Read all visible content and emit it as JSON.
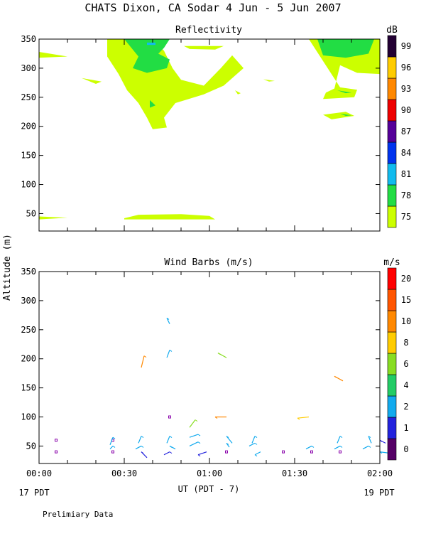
{
  "header": {
    "title": "CHATS Dixon, CA  Sodar   4 Jun -  5 Jun 2007"
  },
  "footer": {
    "note": "Prelimiary Data"
  },
  "shared": {
    "ylabel": "Altitude (m)",
    "xlabel": "UT  (PDT - 7)",
    "x_ticks": [
      "00:00",
      "00:30",
      "01:00",
      "01:30",
      "02:00"
    ],
    "x_sub_left": "17 PDT",
    "x_sub_right": "19 PDT"
  },
  "chart_data": [
    {
      "type": "heatmap",
      "title": "Reflectivity",
      "units": "dB",
      "xlim_minutes": [
        0,
        120
      ],
      "ylim": [
        20,
        350
      ],
      "y_ticks": [
        50,
        100,
        150,
        200,
        250,
        300,
        350
      ],
      "colorbar": {
        "labels": [
          "75",
          "78",
          "81",
          "84",
          "87",
          "90",
          "93",
          "96",
          "99"
        ],
        "colors": [
          "#ccff00",
          "#22dd44",
          "#11bbee",
          "#0033ee",
          "#550099",
          "#ee0000",
          "#ff8800",
          "#ffcc00",
          "#220033"
        ]
      },
      "regions": [
        {
          "level": 75,
          "points": [
            [
              24,
              350
            ],
            [
              40,
              350
            ],
            [
              44,
              330
            ],
            [
              47,
              300
            ],
            [
              50,
              280
            ],
            [
              58,
              270
            ],
            [
              64,
              300
            ],
            [
              68,
              322
            ],
            [
              72,
              300
            ],
            [
              65,
              270
            ],
            [
              58,
              255
            ],
            [
              48,
              240
            ],
            [
              44,
              215
            ],
            [
              45,
              198
            ],
            [
              40,
              195
            ],
            [
              38,
              215
            ],
            [
              35,
              240
            ],
            [
              31,
              262
            ],
            [
              28,
              290
            ],
            [
              24,
              320
            ]
          ]
        },
        {
          "level": 75,
          "points": [
            [
              0,
              328
            ],
            [
              10,
              320
            ],
            [
              0,
              318
            ]
          ]
        },
        {
          "level": 75,
          "points": [
            [
              15,
              283
            ],
            [
              22,
              277
            ],
            [
              20,
              273
            ]
          ]
        },
        {
          "level": 75,
          "points": [
            [
              51,
              338
            ],
            [
              65,
              338
            ],
            [
              62,
              332
            ],
            [
              53,
              333
            ]
          ]
        },
        {
          "level": 75,
          "points": [
            [
              69,
              262
            ],
            [
              71,
              257
            ],
            [
              70,
              255
            ]
          ]
        },
        {
          "level": 75,
          "points": [
            [
              79,
              281
            ],
            [
              83,
              278
            ],
            [
              81,
              277
            ]
          ]
        },
        {
          "level": 75,
          "points": [
            [
              95,
              350
            ],
            [
              120,
              350
            ],
            [
              120,
              290
            ],
            [
              112,
              292
            ],
            [
              106,
              305
            ],
            [
              104,
              265
            ],
            [
              101,
              258
            ],
            [
              100,
              247
            ],
            [
              111,
              250
            ],
            [
              112,
              263
            ],
            [
              106,
              267
            ]
          ]
        },
        {
          "level": 75,
          "points": [
            [
              100,
              220
            ],
            [
              108,
              225
            ],
            [
              111,
              218
            ],
            [
              103,
              212
            ]
          ]
        },
        {
          "level": 75,
          "points": [
            [
              0,
              45
            ],
            [
              10,
              43
            ],
            [
              0,
              40
            ]
          ]
        },
        {
          "level": 75,
          "points": [
            [
              30,
              42
            ],
            [
              35,
              48
            ],
            [
              50,
              49
            ],
            [
              60,
              46
            ],
            [
              62,
              40
            ],
            [
              30,
              40
            ]
          ]
        },
        {
          "level": 78,
          "points": [
            [
              30,
              350
            ],
            [
              46,
              350
            ],
            [
              44,
              335
            ],
            [
              42,
              325
            ],
            [
              46,
              315
            ],
            [
              45,
              300
            ],
            [
              38,
              292
            ],
            [
              33,
              300
            ],
            [
              35,
              320
            ]
          ]
        },
        {
          "level": 78,
          "points": [
            [
              39,
              245
            ],
            [
              41,
              236
            ],
            [
              39,
              232
            ]
          ]
        },
        {
          "level": 78,
          "points": [
            [
              98,
              350
            ],
            [
              118,
              350
            ],
            [
              116,
              325
            ],
            [
              108,
              318
            ],
            [
              100,
              322
            ]
          ]
        },
        {
          "level": 78,
          "points": [
            [
              105,
              262
            ],
            [
              110,
              258
            ],
            [
              108,
              257
            ]
          ]
        },
        {
          "level": 78,
          "points": [
            [
              106,
              222
            ],
            [
              110,
              219
            ],
            [
              108,
              218
            ]
          ]
        },
        {
          "level": 81,
          "points": [
            [
              38,
              344
            ],
            [
              41,
              344
            ],
            [
              41,
              340
            ],
            [
              38,
              340
            ]
          ]
        }
      ]
    },
    {
      "type": "scatter",
      "title": "Wind Barbs (m/s)",
      "units": "m/s",
      "xlim_minutes": [
        0,
        120
      ],
      "ylim": [
        20,
        350
      ],
      "y_ticks": [
        50,
        100,
        150,
        200,
        250,
        300,
        350
      ],
      "colorbar": {
        "labels": [
          "0",
          "1",
          "2",
          "4",
          "6",
          "8",
          "10",
          "15",
          "20"
        ],
        "colors": [
          "#550066",
          "#2222dd",
          "#11aaee",
          "#22cc66",
          "#88dd22",
          "#ffcc00",
          "#ff8800",
          "#ff5500",
          "#ff0000"
        ]
      },
      "calm_points": [
        [
          6,
          60
        ],
        [
          6,
          40
        ],
        [
          26,
          60
        ],
        [
          26,
          40
        ],
        [
          46,
          100
        ],
        [
          66,
          40
        ],
        [
          86,
          40
        ],
        [
          96,
          40
        ],
        [
          106,
          40
        ]
      ],
      "barbs": [
        {
          "t": 45,
          "alt": 270,
          "speed": 2,
          "x2": 46,
          "y2": 260
        },
        {
          "t": 46,
          "alt": 215,
          "speed": 2,
          "x2": 45,
          "y2": 202
        },
        {
          "t": 37,
          "alt": 205,
          "speed": 11,
          "x2": 36,
          "y2": 185
        },
        {
          "t": 63,
          "alt": 210,
          "speed": 6,
          "x2": 66,
          "y2": 202
        },
        {
          "t": 104,
          "alt": 170,
          "speed": 11,
          "x2": 107,
          "y2": 162
        },
        {
          "t": 62,
          "alt": 100,
          "speed": 11,
          "x2": 66,
          "y2": 100
        },
        {
          "t": 91,
          "alt": 98,
          "speed": 8,
          "x2": 95,
          "y2": 100
        },
        {
          "t": 55,
          "alt": 95,
          "speed": 6,
          "x2": 53,
          "y2": 82
        },
        {
          "t": 26,
          "alt": 65,
          "speed": 2,
          "x2": 25,
          "y2": 52
        },
        {
          "t": 36,
          "alt": 67,
          "speed": 2,
          "x2": 35,
          "y2": 55
        },
        {
          "t": 46,
          "alt": 67,
          "speed": 2,
          "x2": 45,
          "y2": 55
        },
        {
          "t": 56,
          "alt": 70,
          "speed": 2,
          "x2": 53,
          "y2": 65
        },
        {
          "t": 66,
          "alt": 67,
          "speed": 2,
          "x2": 68,
          "y2": 55
        },
        {
          "t": 76,
          "alt": 67,
          "speed": 2,
          "x2": 75,
          "y2": 55
        },
        {
          "t": 106,
          "alt": 67,
          "speed": 2,
          "x2": 105,
          "y2": 55
        },
        {
          "t": 116,
          "alt": 67,
          "speed": 2,
          "x2": 117,
          "y2": 55
        },
        {
          "t": 26,
          "alt": 50,
          "speed": 2,
          "x2": 25,
          "y2": 45
        },
        {
          "t": 36,
          "alt": 50,
          "speed": 2,
          "x2": 34,
          "y2": 45
        },
        {
          "t": 46,
          "alt": 50,
          "speed": 2,
          "x2": 48,
          "y2": 45
        },
        {
          "t": 56,
          "alt": 57,
          "speed": 2,
          "x2": 53,
          "y2": 50
        },
        {
          "t": 66,
          "alt": 55,
          "speed": 2,
          "x2": 67,
          "y2": 48
        },
        {
          "t": 76,
          "alt": 55,
          "speed": 2,
          "x2": 74,
          "y2": 50
        },
        {
          "t": 96,
          "alt": 50,
          "speed": 2,
          "x2": 94,
          "y2": 45
        },
        {
          "t": 106,
          "alt": 50,
          "speed": 2,
          "x2": 104,
          "y2": 45
        },
        {
          "t": 116,
          "alt": 50,
          "speed": 2,
          "x2": 114,
          "y2": 45
        },
        {
          "t": 36,
          "alt": 40,
          "speed": 1,
          "x2": 38,
          "y2": 30
        },
        {
          "t": 46,
          "alt": 40,
          "speed": 1,
          "x2": 44,
          "y2": 35
        },
        {
          "t": 56,
          "alt": 35,
          "speed": 1,
          "x2": 59,
          "y2": 40
        },
        {
          "t": 76,
          "alt": 35,
          "speed": 2,
          "x2": 78,
          "y2": 40
        },
        {
          "t": 120,
          "alt": 60,
          "speed": 1,
          "x2": 122,
          "y2": 55
        },
        {
          "t": 120,
          "alt": 40,
          "speed": 2,
          "x2": 123,
          "y2": 38
        }
      ]
    }
  ]
}
